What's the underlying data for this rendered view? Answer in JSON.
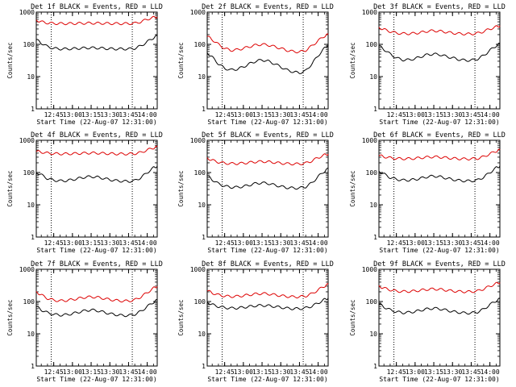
{
  "x_ticks": [
    "12:45",
    "13:00",
    "13:15",
    "13:30",
    "13:45",
    "14:00"
  ],
  "y_ticks": [
    "1",
    "10",
    "100",
    "1000"
  ],
  "xlabel": "Start Time (22-Aug-07 12:31:00)",
  "ylabel": "Counts/sec",
  "colors": {
    "events": "#000000",
    "lld": "#dd0000"
  },
  "chart_data": [
    {
      "type": "line",
      "title": "Det 1f BLACK = Events, RED = LLD",
      "x": [
        "12:31",
        "12:35",
        "12:40",
        "12:45",
        "12:50",
        "12:55",
        "13:00",
        "13:05",
        "13:10",
        "13:15",
        "13:20",
        "13:25",
        "13:30",
        "13:35",
        "13:40",
        "13:45",
        "13:50",
        "13:55",
        "14:00",
        "14:05",
        "14:08"
      ],
      "series": [
        {
          "values": [
            140,
            110,
            85,
            75,
            72,
            72,
            73,
            75,
            77,
            78,
            77,
            75,
            73,
            72,
            72,
            72,
            75,
            90,
            120,
            160,
            180
          ]
        },
        {
          "values": [
            560,
            500,
            460,
            445,
            440,
            440,
            442,
            448,
            452,
            455,
            452,
            448,
            442,
            440,
            440,
            440,
            450,
            500,
            600,
            680,
            720
          ]
        }
      ],
      "markers": [
        "12:43",
        "13:48"
      ],
      "ylim": [
        1,
        1000
      ],
      "scale": "log"
    },
    {
      "type": "line",
      "title": "Det 2f BLACK = Events, RED = LLD",
      "x": [
        "12:31",
        "12:35",
        "12:40",
        "12:45",
        "12:50",
        "12:55",
        "13:00",
        "13:05",
        "13:10",
        "13:15",
        "13:20",
        "13:25",
        "13:30",
        "13:35",
        "13:40",
        "13:45",
        "13:50",
        "13:55",
        "14:00",
        "14:05",
        "14:08"
      ],
      "series": [
        {
          "values": [
            55,
            40,
            25,
            18,
            16,
            17,
            20,
            25,
            30,
            33,
            30,
            25,
            20,
            16,
            14,
            13,
            15,
            25,
            45,
            75,
            100
          ]
        },
        {
          "values": [
            180,
            140,
            100,
            75,
            65,
            68,
            75,
            85,
            95,
            100,
            95,
            85,
            75,
            65,
            60,
            58,
            65,
            90,
            130,
            180,
            200
          ]
        }
      ],
      "markers": [
        "12:43",
        "13:48"
      ],
      "ylim": [
        1,
        1000
      ],
      "scale": "log"
    },
    {
      "type": "line",
      "title": "Det 3f BLACK = Events, RED = LLD",
      "x": [
        "12:31",
        "12:35",
        "12:40",
        "12:45",
        "12:50",
        "12:55",
        "13:00",
        "13:05",
        "13:10",
        "13:15",
        "13:20",
        "13:25",
        "13:30",
        "13:35",
        "13:40",
        "13:45",
        "13:50",
        "13:55",
        "14:00",
        "14:05",
        "14:08"
      ],
      "series": [
        {
          "values": [
            90,
            70,
            50,
            38,
            33,
            33,
            36,
            42,
            48,
            50,
            48,
            42,
            38,
            34,
            32,
            32,
            35,
            45,
            65,
            90,
            105
          ]
        },
        {
          "values": [
            330,
            290,
            250,
            225,
            215,
            215,
            220,
            235,
            255,
            265,
            255,
            240,
            225,
            215,
            210,
            210,
            220,
            250,
            300,
            350,
            380
          ]
        }
      ],
      "markers": [
        "12:43",
        "13:48"
      ],
      "ylim": [
        1,
        1000
      ],
      "scale": "log"
    },
    {
      "type": "line",
      "title": "Det 4f BLACK = Events, RED = LLD",
      "x": [
        "12:31",
        "12:35",
        "12:40",
        "12:45",
        "12:50",
        "12:55",
        "13:00",
        "13:05",
        "13:10",
        "13:15",
        "13:20",
        "13:25",
        "13:30",
        "13:35",
        "13:40",
        "13:45",
        "13:50",
        "13:55",
        "14:00",
        "14:05",
        "14:08"
      ],
      "series": [
        {
          "values": [
            100,
            85,
            65,
            58,
            55,
            56,
            60,
            66,
            72,
            75,
            72,
            66,
            60,
            56,
            54,
            53,
            56,
            70,
            100,
            140,
            160
          ]
        },
        {
          "values": [
            460,
            430,
            400,
            385,
            380,
            380,
            385,
            392,
            400,
            405,
            400,
            392,
            385,
            380,
            378,
            378,
            385,
            420,
            500,
            580,
            620
          ]
        }
      ],
      "markers": [
        "12:43",
        "13:48"
      ],
      "ylim": [
        1,
        1000
      ],
      "scale": "log"
    },
    {
      "type": "line",
      "title": "Det 5f BLACK = Events, RED = LLD",
      "x": [
        "12:31",
        "12:35",
        "12:40",
        "12:45",
        "12:50",
        "12:55",
        "13:00",
        "13:05",
        "13:10",
        "13:15",
        "13:20",
        "13:25",
        "13:30",
        "13:35",
        "13:40",
        "13:45",
        "13:50",
        "13:55",
        "14:00",
        "14:05",
        "14:08"
      ],
      "series": [
        {
          "values": [
            80,
            60,
            45,
            38,
            35,
            35,
            37,
            41,
            46,
            48,
            46,
            41,
            37,
            34,
            33,
            33,
            36,
            48,
            75,
            110,
            130
          ]
        },
        {
          "values": [
            280,
            240,
            210,
            195,
            190,
            190,
            195,
            205,
            215,
            220,
            215,
            205,
            195,
            188,
            185,
            185,
            195,
            230,
            290,
            350,
            380
          ]
        }
      ],
      "markers": [
        "12:43",
        "13:48"
      ],
      "ylim": [
        1,
        1000
      ],
      "scale": "log"
    },
    {
      "type": "line",
      "title": "Det 6f BLACK = Events, RED = LLD",
      "x": [
        "12:31",
        "12:35",
        "12:40",
        "12:45",
        "12:50",
        "12:55",
        "13:00",
        "13:05",
        "13:10",
        "13:15",
        "13:20",
        "13:25",
        "13:30",
        "13:35",
        "13:40",
        "13:45",
        "13:50",
        "13:55",
        "14:00",
        "14:05",
        "14:08"
      ],
      "series": [
        {
          "values": [
            110,
            90,
            70,
            62,
            58,
            58,
            61,
            67,
            74,
            78,
            74,
            67,
            61,
            57,
            55,
            55,
            58,
            72,
            100,
            140,
            160
          ]
        },
        {
          "values": [
            340,
            310,
            285,
            272,
            268,
            268,
            275,
            288,
            300,
            308,
            300,
            288,
            275,
            268,
            265,
            265,
            272,
            310,
            380,
            460,
            500
          ]
        }
      ],
      "markers": [
        "12:43",
        "13:48"
      ],
      "ylim": [
        1,
        1000
      ],
      "scale": "log"
    },
    {
      "type": "line",
      "title": "Det 7f BLACK = Events, RED = LLD",
      "x": [
        "12:31",
        "12:35",
        "12:40",
        "12:45",
        "12:50",
        "12:55",
        "13:00",
        "13:05",
        "13:10",
        "13:15",
        "13:20",
        "13:25",
        "13:30",
        "13:35",
        "13:40",
        "13:45",
        "13:50",
        "13:55",
        "14:00",
        "14:05",
        "14:08"
      ],
      "series": [
        {
          "values": [
            70,
            55,
            45,
            40,
            38,
            39,
            42,
            47,
            52,
            55,
            52,
            47,
            42,
            39,
            37,
            37,
            40,
            50,
            70,
            95,
            110
          ]
        },
        {
          "values": [
            200,
            160,
            125,
            110,
            105,
            108,
            115,
            125,
            135,
            140,
            135,
            125,
            115,
            108,
            104,
            104,
            112,
            140,
            190,
            260,
            300
          ]
        }
      ],
      "markers": [
        "12:43",
        "13:48"
      ],
      "ylim": [
        1,
        1000
      ],
      "scale": "log"
    },
    {
      "type": "line",
      "title": "Det 8f BLACK = Events, RED = LLD",
      "x": [
        "12:31",
        "12:35",
        "12:40",
        "12:45",
        "12:50",
        "12:55",
        "13:00",
        "13:05",
        "13:10",
        "13:15",
        "13:20",
        "13:25",
        "13:30",
        "13:35",
        "13:40",
        "13:45",
        "13:50",
        "13:55",
        "14:00",
        "14:05",
        "14:08"
      ],
      "series": [
        {
          "values": [
            95,
            80,
            70,
            65,
            62,
            63,
            66,
            70,
            74,
            76,
            74,
            70,
            66,
            62,
            60,
            60,
            63,
            72,
            90,
            115,
            130
          ]
        },
        {
          "values": [
            220,
            185,
            160,
            148,
            143,
            145,
            152,
            162,
            172,
            178,
            172,
            162,
            152,
            144,
            140,
            140,
            148,
            175,
            230,
            300,
            340
          ]
        }
      ],
      "markers": [
        "12:43",
        "13:48"
      ],
      "ylim": [
        1,
        1000
      ],
      "scale": "log"
    },
    {
      "type": "line",
      "title": "Det 9f BLACK = Events, RED = LLD",
      "x": [
        "12:31",
        "12:35",
        "12:40",
        "12:45",
        "12:50",
        "12:55",
        "13:00",
        "13:05",
        "13:10",
        "13:15",
        "13:20",
        "13:25",
        "13:30",
        "13:35",
        "13:40",
        "13:45",
        "13:50",
        "13:55",
        "14:00",
        "14:05",
        "14:08"
      ],
      "series": [
        {
          "values": [
            85,
            68,
            55,
            48,
            45,
            46,
            49,
            54,
            59,
            62,
            59,
            54,
            49,
            46,
            44,
            44,
            47,
            58,
            80,
            105,
            120
          ]
        },
        {
          "values": [
            300,
            260,
            230,
            210,
            205,
            206,
            212,
            225,
            238,
            245,
            238,
            225,
            212,
            205,
            202,
            202,
            212,
            245,
            300,
            360,
            390
          ]
        }
      ],
      "markers": [
        "12:43",
        "13:48"
      ],
      "ylim": [
        1,
        1000
      ],
      "scale": "log"
    }
  ]
}
